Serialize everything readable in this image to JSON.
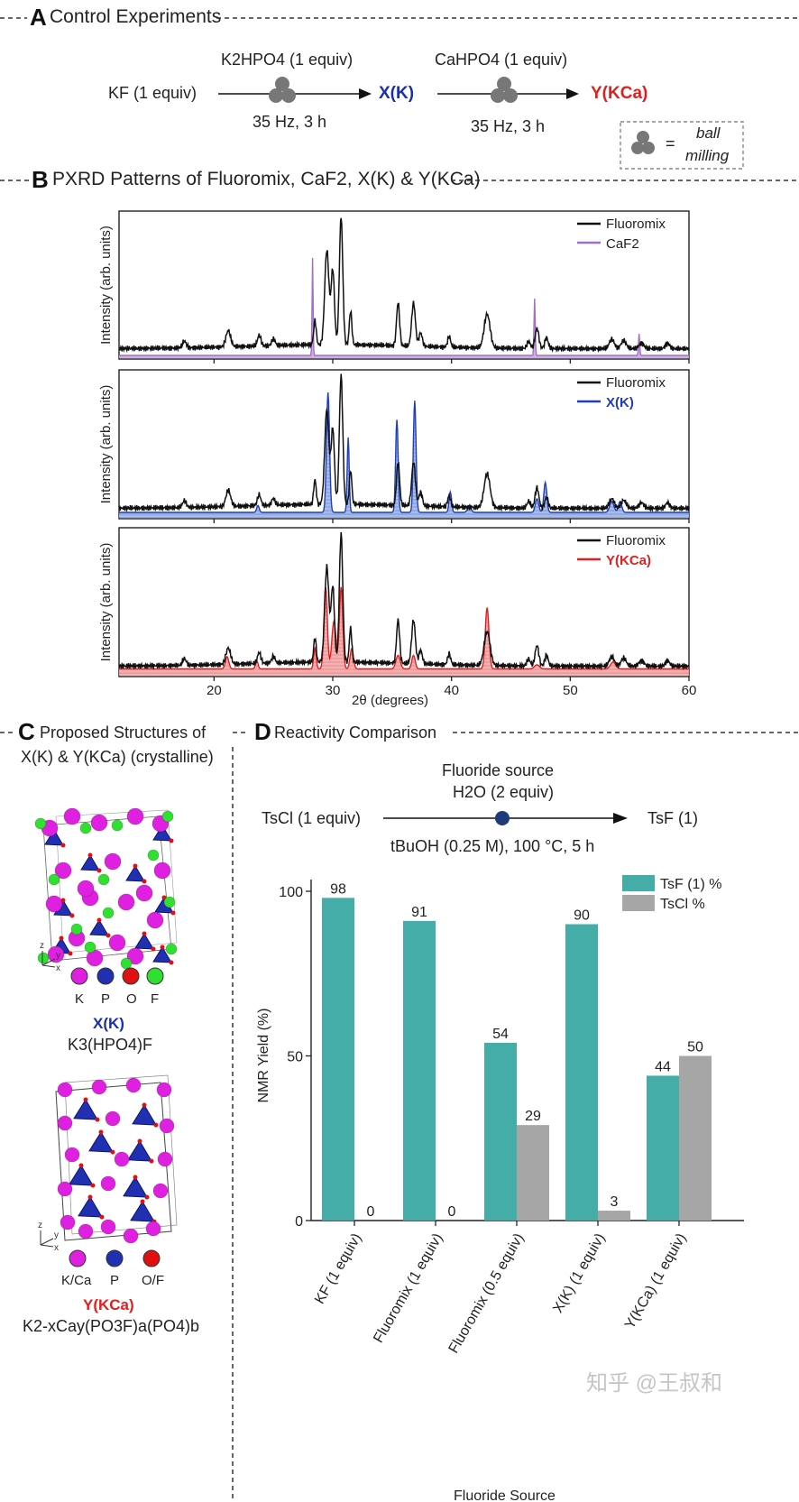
{
  "panel_a": {
    "letter": "A",
    "title": "Control Experiments",
    "start": "KF (1 equiv)",
    "reagent1": "K2HPO4 (1 equiv)",
    "cond1": "35 Hz, 3 h",
    "intermediate": "X(K)",
    "reagent2": "CaHPO4 (1 equiv)",
    "cond2": "35 Hz, 3 h",
    "product": "Y(KCa)",
    "legend_eq": "=",
    "legend_text1": "ball",
    "legend_text2": "milling",
    "colors": {
      "x_blue": "#1a2fa8",
      "y_red": "#e02020",
      "ball_gray": "#777777"
    }
  },
  "panel_b": {
    "letter": "B",
    "title": "PXRD Patterns of Fluoromix, CaF2, X(K) & Y(KCa)",
    "ylabel": "Intensity (arb. units)",
    "xlabel": "2θ (degrees)",
    "xticks": [
      "20",
      "30",
      "40",
      "50",
      "60"
    ],
    "xrange": [
      12,
      60
    ],
    "subplots": [
      {
        "legend": [
          "Fluoromix",
          "CaF2"
        ],
        "colors": [
          "#111111",
          "#a070c8"
        ]
      },
      {
        "legend": [
          "Fluoromix",
          "X(K)"
        ],
        "colors": [
          "#111111",
          "#1f3fb8"
        ]
      },
      {
        "legend": [
          "Fluoromix",
          "Y(KCa)"
        ],
        "colors": [
          "#111111",
          "#e02020"
        ]
      }
    ]
  },
  "panel_c": {
    "letter": "C",
    "title1": "Proposed Structures of",
    "title2": "X(K) & Y(KCa) (crystalline)",
    "struct1": {
      "legend": [
        "K",
        "P",
        "O",
        "F"
      ],
      "name": "X(K)",
      "formula": "K3(HPO4)F"
    },
    "struct2": {
      "legend": [
        "K/Ca",
        "P",
        "O/F"
      ],
      "name": "Y(KCa)",
      "formula": "K2-xCay(PO3F)a(PO4)b"
    },
    "axis_labels": [
      "z",
      "y",
      "x"
    ],
    "colors": {
      "magenta": "#e020e0",
      "blue": "#2030b0",
      "red": "#e01010",
      "green": "#30e030"
    }
  },
  "panel_d": {
    "letter": "D",
    "title": "Reactivity Comparison",
    "reactant": "TsCl (1 equiv)",
    "above1": "Fluoride source",
    "above2": "H2O (2 equiv)",
    "below": "tBuOH (0.25 M), 100 °C, 5 h",
    "product": "TsF (1)"
  },
  "chart_data": {
    "type": "bar",
    "title": "",
    "xlabel": "Fluoride Source",
    "ylabel": "NMR Yield (%)",
    "ylim": [
      0,
      100
    ],
    "yticks": [
      0,
      50,
      100
    ],
    "categories": [
      "KF (1 equiv)",
      "Fluoromix (1 equiv)",
      "Fluoromix (0.5 equiv)",
      "X(K) (1 equiv)",
      "Y(KCa) (1 equiv)"
    ],
    "series": [
      {
        "name": "TsF (1) %",
        "color": "#45ada8",
        "values": [
          98,
          91,
          54,
          90,
          44
        ]
      },
      {
        "name": "TsCl %",
        "color": "#a6a6a6",
        "values": [
          0,
          0,
          29,
          3,
          50
        ]
      }
    ]
  },
  "watermark": "知乎 @王叔和"
}
